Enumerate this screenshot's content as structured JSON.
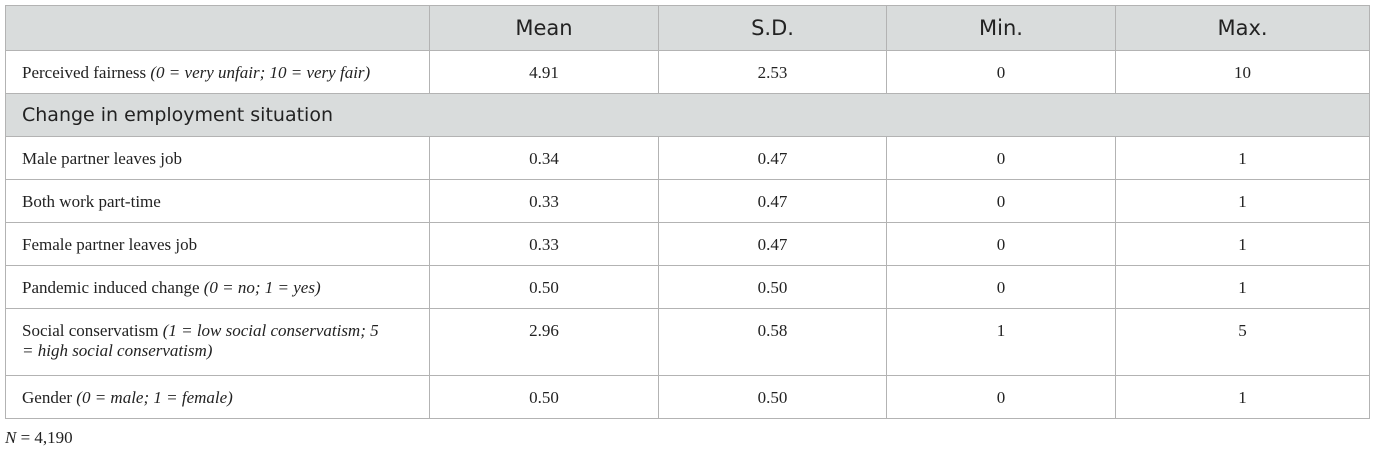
{
  "headers": [
    "",
    "Mean",
    "S.D.",
    "Min.",
    "Max."
  ],
  "row_fairness": {
    "label": "Perceived fairness",
    "label_note": "(0 = very unfair; 10 = very fair)",
    "values": [
      "4.91",
      "2.53",
      "0",
      "10"
    ]
  },
  "section": {
    "label": "Change in employment situation"
  },
  "rows_employment": [
    {
      "label": "Male partner leaves job",
      "values": [
        "0.34",
        "0.47",
        "0",
        "1"
      ]
    },
    {
      "label": "Both work part-time",
      "values": [
        "0.33",
        "0.47",
        "0",
        "1"
      ]
    },
    {
      "label": "Female partner leaves job",
      "values": [
        "0.33",
        "0.47",
        "0",
        "1"
      ]
    }
  ],
  "row_pandemic": {
    "label": "Pandemic induced change",
    "label_note": "(0 = no; 1 = yes)",
    "values": [
      "0.50",
      "0.50",
      "0",
      "1"
    ]
  },
  "row_conservatism": {
    "label": "Social conservatism",
    "label_note": "(1 = low social conservatism; 5",
    "label_note2": "= high social conservatism)",
    "values": [
      "2.96",
      "0.58",
      "1",
      "5"
    ]
  },
  "row_gender": {
    "label": "Gender",
    "label_note": "(0 = male; 1 = female)",
    "values": [
      "0.50",
      "0.50",
      "0",
      "1"
    ]
  },
  "footnote": {
    "n": "N",
    "rest": " = 4,190"
  }
}
